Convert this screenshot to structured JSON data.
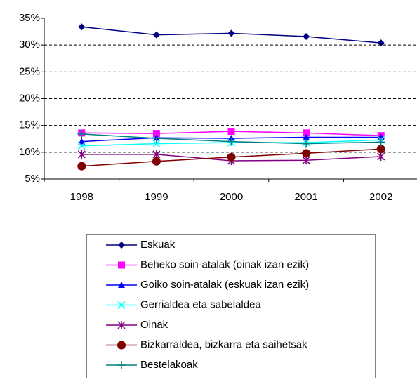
{
  "chart_data": {
    "type": "line",
    "categories": [
      "1998",
      "1999",
      "2000",
      "2001",
      "2002"
    ],
    "ylim": [
      5,
      35
    ],
    "yticks": [
      {
        "value": 5,
        "label": "5%"
      },
      {
        "value": 10,
        "label": "10%"
      },
      {
        "value": 15,
        "label": "15%"
      },
      {
        "value": 20,
        "label": "20%"
      },
      {
        "value": 25,
        "label": "25%"
      },
      {
        "value": 30,
        "label": "30%"
      },
      {
        "value": 35,
        "label": "35%"
      }
    ],
    "grid": true,
    "legend": "bottom",
    "series": [
      {
        "name": "Eskuak",
        "color": "#000080",
        "marker": "diamond",
        "values": [
          33.4,
          31.9,
          32.2,
          31.6,
          30.4
        ]
      },
      {
        "name": "Beheko soin-atalak (oinak izan ezik)",
        "color": "#ff00ff",
        "marker": "square",
        "values": [
          13.6,
          13.5,
          13.9,
          13.6,
          13.1
        ]
      },
      {
        "name": "Goiko soin-atalak (eskuak izan ezik)",
        "color": "#0000ff",
        "marker": "triangle",
        "values": [
          12.0,
          12.7,
          12.6,
          12.8,
          12.8
        ]
      },
      {
        "name": "Gerrialdea eta sabelaldea",
        "color": "#00ffff",
        "marker": "x",
        "values": [
          11.2,
          11.6,
          11.8,
          11.8,
          12.3
        ]
      },
      {
        "name": "Oinak",
        "color": "#800080",
        "marker": "asterisk",
        "values": [
          9.6,
          9.6,
          8.4,
          8.5,
          9.2
        ]
      },
      {
        "name": "Bizkarraldea, bizkarra eta saihetsak",
        "color": "#800000",
        "marker": "circle",
        "values": [
          7.4,
          8.3,
          9.1,
          9.8,
          10.6
        ]
      },
      {
        "name": "Bestelakoak",
        "color": "#008080",
        "marker": "plus",
        "values": [
          13.4,
          12.6,
          12.0,
          11.6,
          11.9
        ]
      }
    ]
  }
}
